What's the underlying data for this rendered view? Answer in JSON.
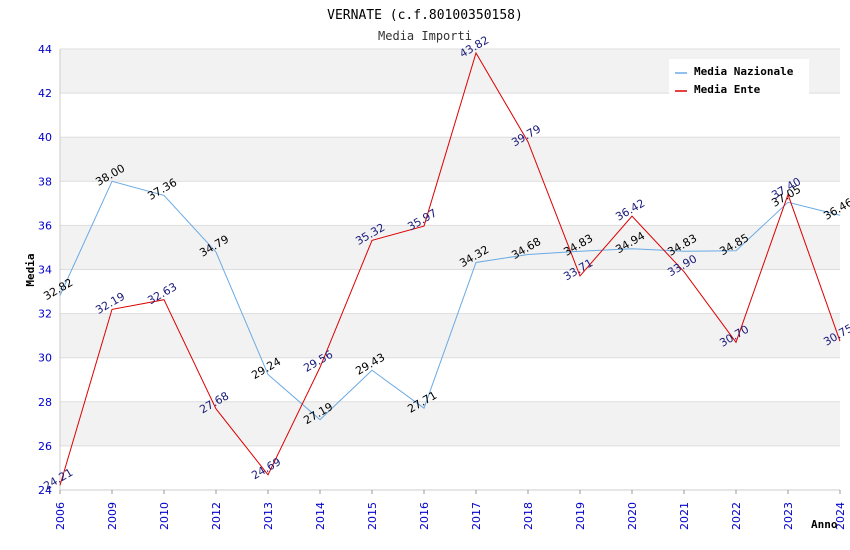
{
  "chart_data": {
    "type": "line",
    "title": "VERNATE (c.f.80100350158)",
    "subtitle": "Media Importi",
    "xlabel": "Anno",
    "ylabel": "Media",
    "ylim": [
      24,
      44
    ],
    "yticks": [
      24,
      26,
      28,
      30,
      32,
      34,
      36,
      38,
      40,
      42,
      44
    ],
    "grid": true,
    "legend_position": "top-right",
    "categories": [
      "2006",
      "2009",
      "2010",
      "2012",
      "2013",
      "2014",
      "2015",
      "2016",
      "2017",
      "2018",
      "2019",
      "2020",
      "2021",
      "2022",
      "2023",
      "2024"
    ],
    "series": [
      {
        "name": "Media Nazionale",
        "color": "#6aaae4",
        "label_color": "#000000",
        "values": [
          32.82,
          38.0,
          37.36,
          34.79,
          29.24,
          27.19,
          29.43,
          27.71,
          34.32,
          34.68,
          34.83,
          34.94,
          34.83,
          34.85,
          37.05,
          36.46
        ],
        "labels": [
          "32.82",
          "38.00",
          "37.36",
          "34.79",
          "29.24",
          "27.19",
          "29.43",
          "27.71",
          "34.32",
          "34.68",
          "34.83",
          "34.94",
          "34.83",
          "34.85",
          "37.05",
          "36.46"
        ]
      },
      {
        "name": "Media Ente",
        "color": "#dd0000",
        "label_color": "#1a1a7a",
        "values": [
          24.21,
          32.19,
          32.63,
          27.68,
          24.69,
          29.56,
          35.32,
          35.97,
          43.82,
          39.79,
          33.71,
          36.42,
          33.9,
          30.7,
          37.4,
          30.75
        ],
        "labels": [
          "24.21",
          "32.19",
          "32.63",
          "27.68",
          "24.69",
          "29.56",
          "35.32",
          "35.97",
          "43.82",
          "39.79",
          "33.71",
          "36.42",
          "33.90",
          "30.70",
          "37.40",
          "30.75"
        ]
      }
    ]
  }
}
